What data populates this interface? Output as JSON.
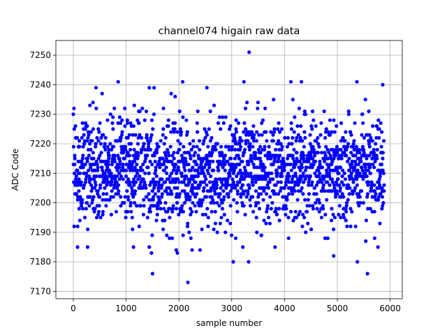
{
  "chart_data": {
    "type": "scatter",
    "title": "channel074 higain raw data",
    "xlabel": "sample number",
    "ylabel": "ADC Code",
    "xlim": [
      -330,
      6230
    ],
    "ylim": [
      7167.5,
      7255
    ],
    "xticks": [
      0,
      1000,
      2000,
      3000,
      4000,
      5000,
      6000
    ],
    "yticks": [
      7170,
      7180,
      7190,
      7200,
      7210,
      7220,
      7230,
      7240,
      7250
    ],
    "grid": true,
    "marker_color": "#0000ff",
    "series": [
      {
        "name": "",
        "n_points": 5888,
        "y_center": 7211,
        "y_sd": 9,
        "y_min": 7173,
        "y_max": 7251,
        "outliers": [
          [
            3330,
            7251
          ],
          [
            2170,
            7173
          ],
          [
            1500,
            7176
          ],
          [
            5570,
            7176
          ],
          [
            2070,
            7241
          ],
          [
            850,
            7241
          ],
          [
            3230,
            7241
          ],
          [
            4120,
            7241
          ],
          [
            4320,
            7241
          ],
          [
            5370,
            7241
          ],
          [
            5860,
            7240
          ],
          [
            1440,
            7239
          ],
          [
            1530,
            7239
          ],
          [
            430,
            7239
          ],
          [
            2530,
            7239
          ],
          [
            3030,
            7180
          ],
          [
            3320,
            7180
          ],
          [
            5380,
            7180
          ],
          [
            4930,
            7182
          ],
          [
            1970,
            7183
          ],
          [
            1950,
            7184
          ],
          [
            1480,
            7183
          ],
          [
            1140,
            7185
          ],
          [
            80,
            7185
          ],
          [
            270,
            7185
          ],
          [
            2250,
            7184
          ],
          [
            2400,
            7184
          ],
          [
            3210,
            7185
          ],
          [
            3820,
            7185
          ],
          [
            5770,
            7185
          ],
          [
            1440,
            7185
          ]
        ]
      }
    ]
  }
}
